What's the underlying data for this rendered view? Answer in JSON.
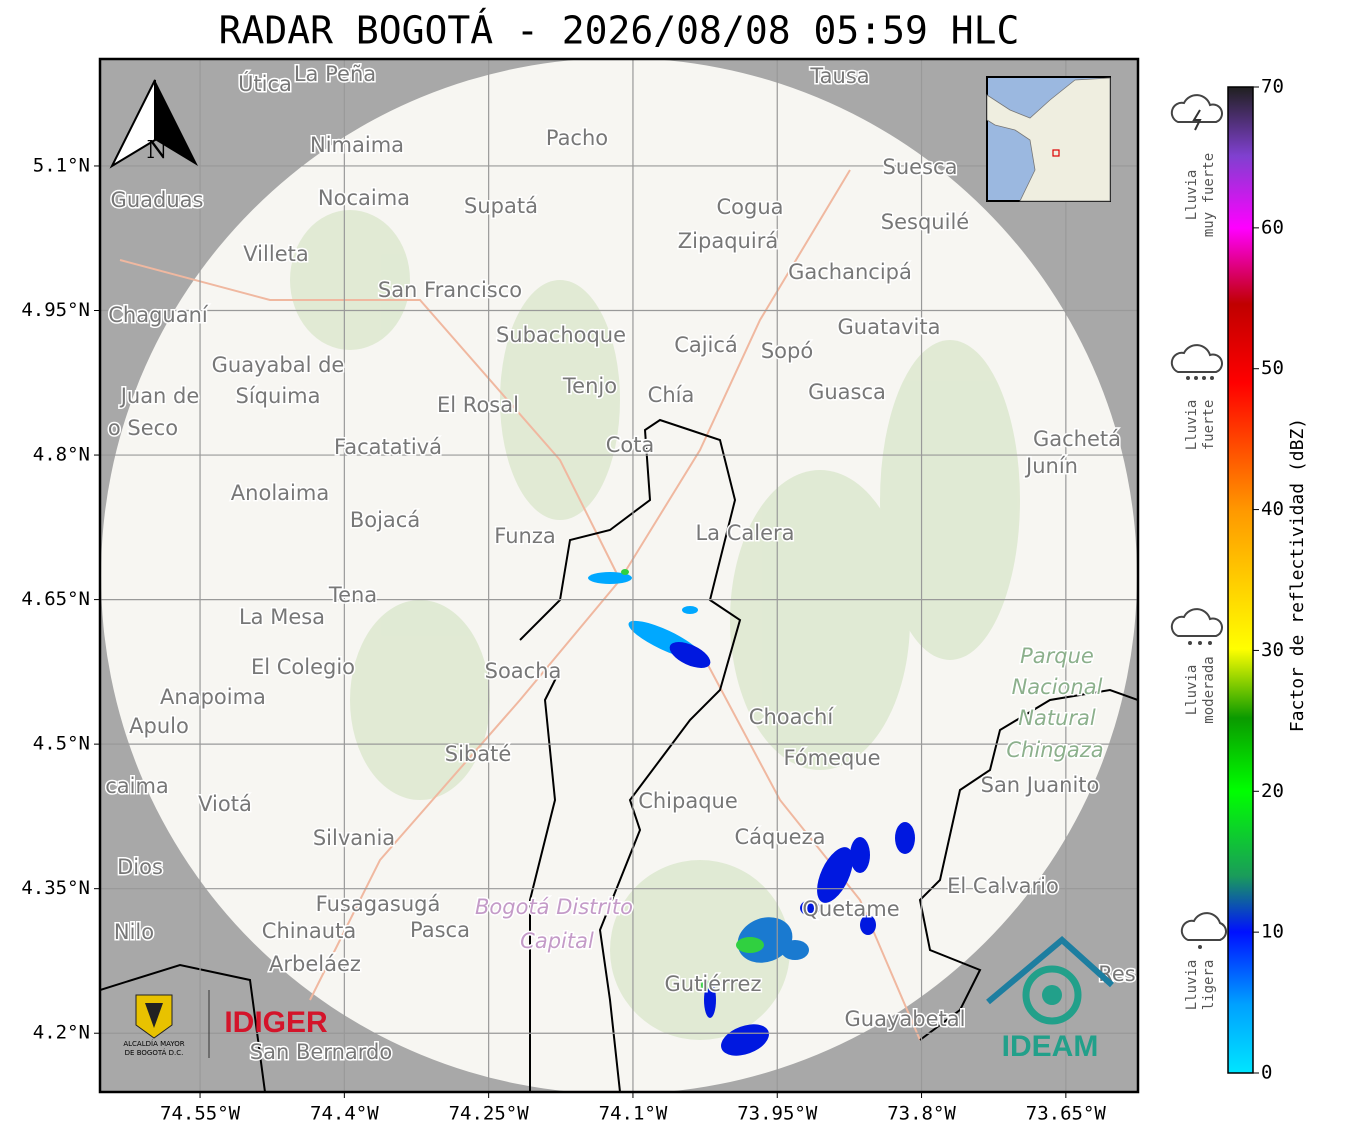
{
  "title": "RADAR BOGOTÁ - 2026/08/08 05:59 HLC",
  "map": {
    "xlim": [
      -74.654,
      -73.575
    ],
    "ylim": [
      4.139,
      5.211
    ],
    "xticks": [
      {
        "value": -74.55,
        "label": "74.55°W"
      },
      {
        "value": -74.4,
        "label": "74.4°W"
      },
      {
        "value": -74.25,
        "label": "74.25°W"
      },
      {
        "value": -74.1,
        "label": "74.1°W"
      },
      {
        "value": -73.95,
        "label": "73.95°W"
      },
      {
        "value": -73.8,
        "label": "73.8°W"
      },
      {
        "value": -73.65,
        "label": "73.65°W"
      }
    ],
    "yticks": [
      {
        "value": 5.1,
        "label": "5.1°N"
      },
      {
        "value": 4.95,
        "label": "4.95°N"
      },
      {
        "value": 4.8,
        "label": "4.8°N"
      },
      {
        "value": 4.65,
        "label": "4.65°N"
      },
      {
        "value": 4.5,
        "label": "4.5°N"
      },
      {
        "value": 4.35,
        "label": "4.35°N"
      },
      {
        "value": 4.2,
        "label": "4.2°N"
      }
    ],
    "grid": true,
    "places": [
      "Útica",
      "La Peña",
      "Tausa",
      "Pacho",
      "Nimaima",
      "Suesca",
      "Guaduas",
      "Nocaima",
      "Supatá",
      "Cogua",
      "Sesquilé",
      "Zipaquirá",
      "Villeta",
      "Gachancipá",
      "San Francisco",
      "Chaguaní",
      "Guatavita",
      "Subachoque",
      "Cajicá",
      "Sopó",
      "Guayabal de",
      "Síquima",
      "Juan de",
      "o Seco",
      "Tenjo",
      "Chía",
      "Guasca",
      "El Rosal",
      "Facatativá",
      "Cota",
      "Gachetá",
      "Junín",
      "Anolaima",
      "Bojacá",
      "Funza",
      "La Calera",
      "Tena",
      "La Mesa",
      "El Colegio",
      "Soacha",
      "Parque",
      "Nacional",
      "Natural",
      "Chingaza",
      "Anapoima",
      "Apulo",
      "Choachí",
      "Sibaté",
      "Fómeque",
      "San Juanito",
      "caima",
      "Viotá",
      "Chipaque",
      "Silvania",
      "Cáqueza",
      "Dios",
      "El Calvario",
      "Fusagasugá",
      "Bogotá Distrito",
      "Capital",
      "Quetame",
      "Chinauta",
      "Pasca",
      "Nilo",
      "Arbeláez",
      "Gutiérrez",
      "Guayabetal",
      "San Bernardo",
      "Res"
    ],
    "compass": "N"
  },
  "colorbar": {
    "label": "Factor de reflectividad (dBZ)",
    "lim": [
      0,
      70
    ],
    "ticks": [
      0,
      10,
      20,
      30,
      40,
      50,
      60,
      70
    ]
  },
  "legend": [
    [
      "Lluvia",
      "muy fuerte"
    ],
    [
      "Lluvia",
      "fuerte"
    ],
    [
      "Lluvia",
      "moderada"
    ],
    [
      "Lluvia",
      "ligera"
    ]
  ],
  "logos": {
    "alcaldia": [
      "ALCALDÍA MAYOR",
      "DE BOGOTÁ D.C."
    ],
    "idiger": "IDIGER",
    "ideam": "IDEAM"
  }
}
